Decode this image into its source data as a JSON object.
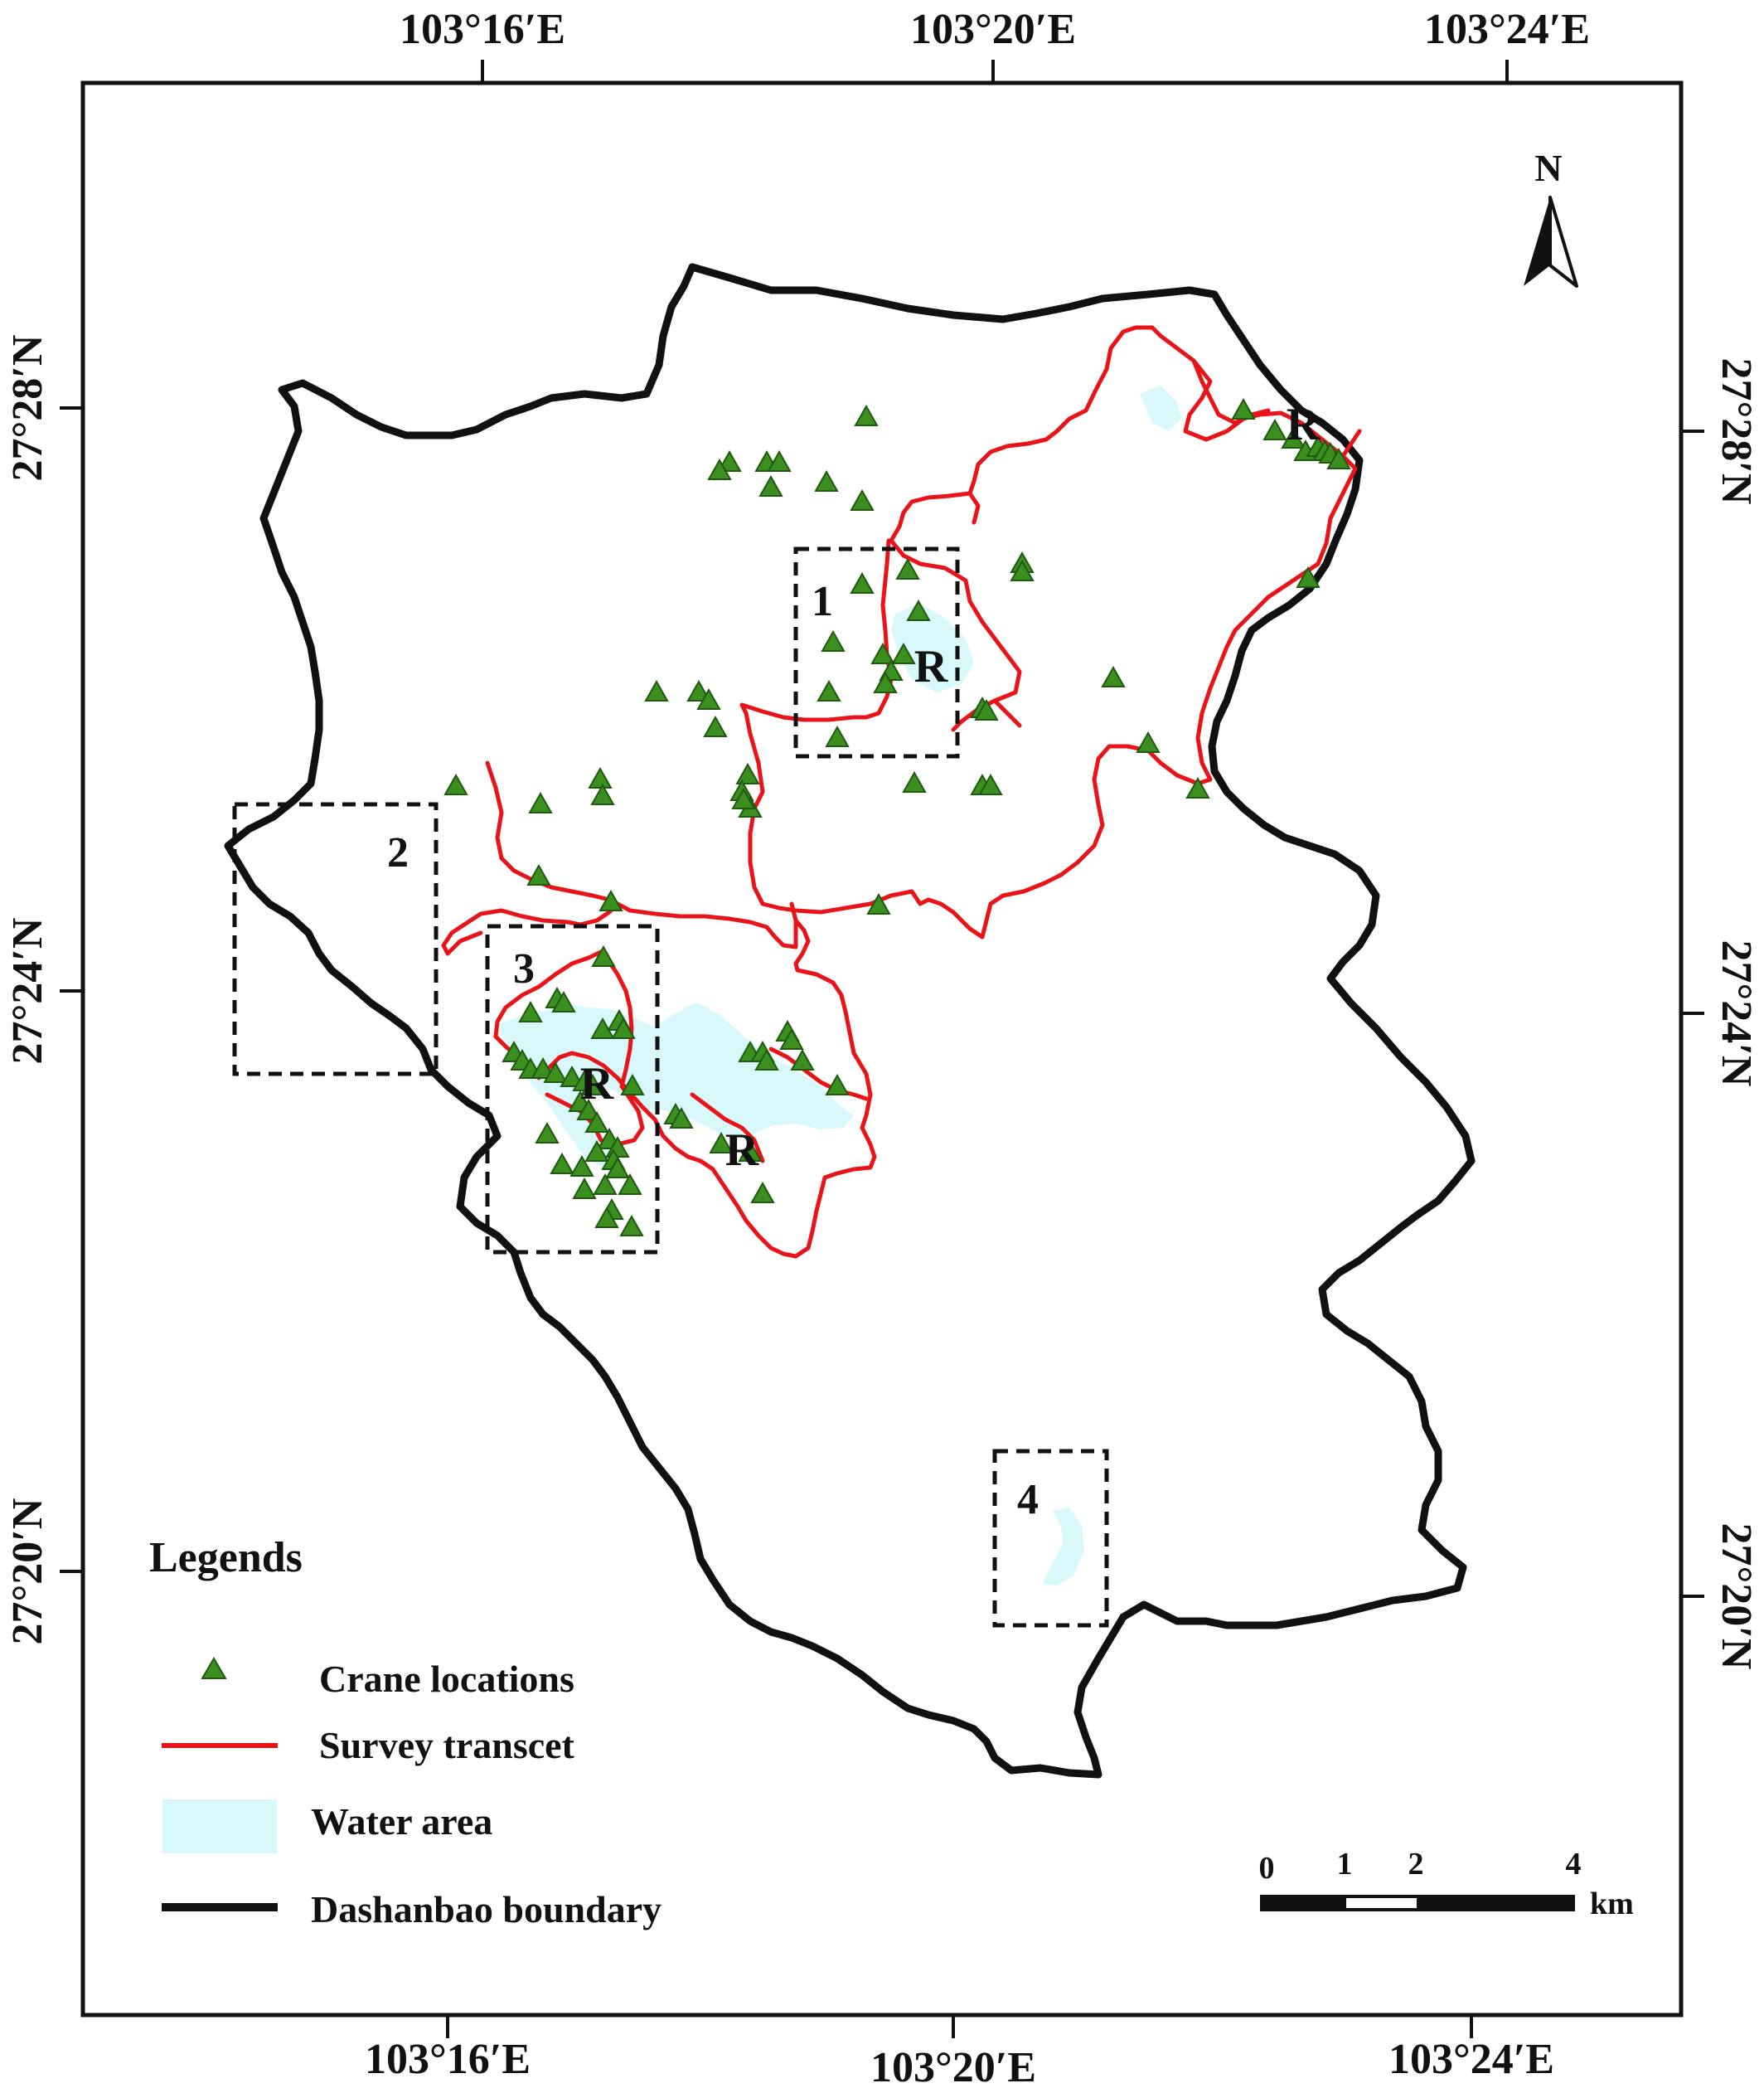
{
  "map": {
    "top_longitudes": [
      "103°16′E",
      "103°20′E",
      "103°24′E"
    ],
    "bottom_longitudes": [
      "103°16′E",
      "103°20′E",
      "103°24′E"
    ],
    "left_latitudes": [
      "27°28′N",
      "27°24′N",
      "27°20′N"
    ],
    "right_latitudes": [
      "27°28′N",
      "27°24′N",
      "27°20′N"
    ],
    "north_label": "N",
    "box_labels": [
      "1",
      "2",
      "3",
      "4"
    ],
    "reservoir_label": "R"
  },
  "legend": {
    "title": "Legends",
    "items": [
      {
        "label": "Crane locations",
        "symbol": "triangle-icon",
        "color": "#2e7d1a"
      },
      {
        "label": "Survey transcet",
        "symbol": "red-line",
        "color": "#e8141a"
      },
      {
        "label": "Water area",
        "symbol": "water-swatch",
        "color": "#d8f8fb"
      },
      {
        "label": "Dashanbao boundary",
        "symbol": "black-line",
        "color": "#111111"
      }
    ]
  },
  "scale_bar": {
    "ticks": [
      "0",
      "1",
      "2",
      "4"
    ],
    "unit": "km"
  },
  "colors": {
    "crane": "#2e7d1a",
    "crane_fill": "#3a8f1f",
    "transect": "#e8141a",
    "water": "#d8f8fb",
    "boundary": "#111111"
  }
}
